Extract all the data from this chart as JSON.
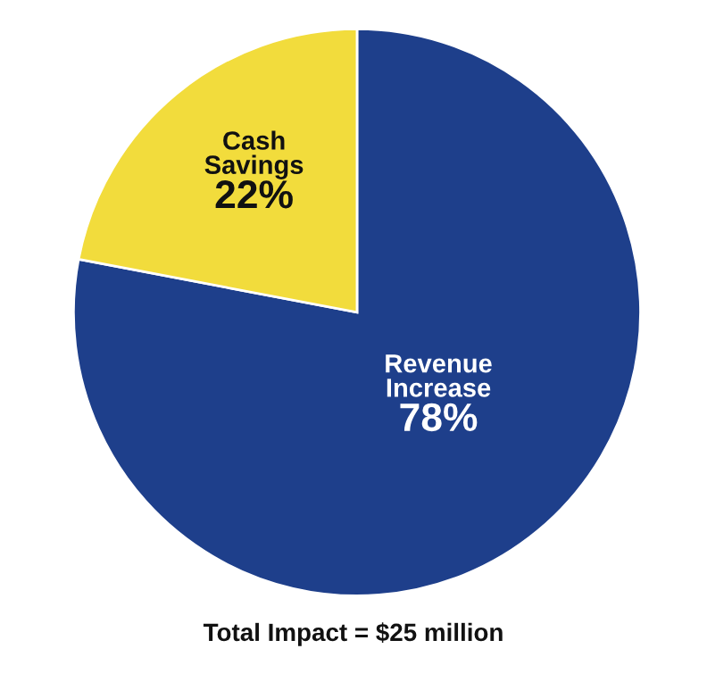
{
  "chart_data": {
    "type": "pie",
    "categories": [
      "Revenue Increase",
      "Cash Savings"
    ],
    "values": [
      78,
      22
    ],
    "colors": [
      "#1e3f8b",
      "#f2dc3c"
    ],
    "value_labels": [
      "78%",
      "22%"
    ],
    "annotations": [
      "Total Impact = $25 million"
    ]
  }
}
